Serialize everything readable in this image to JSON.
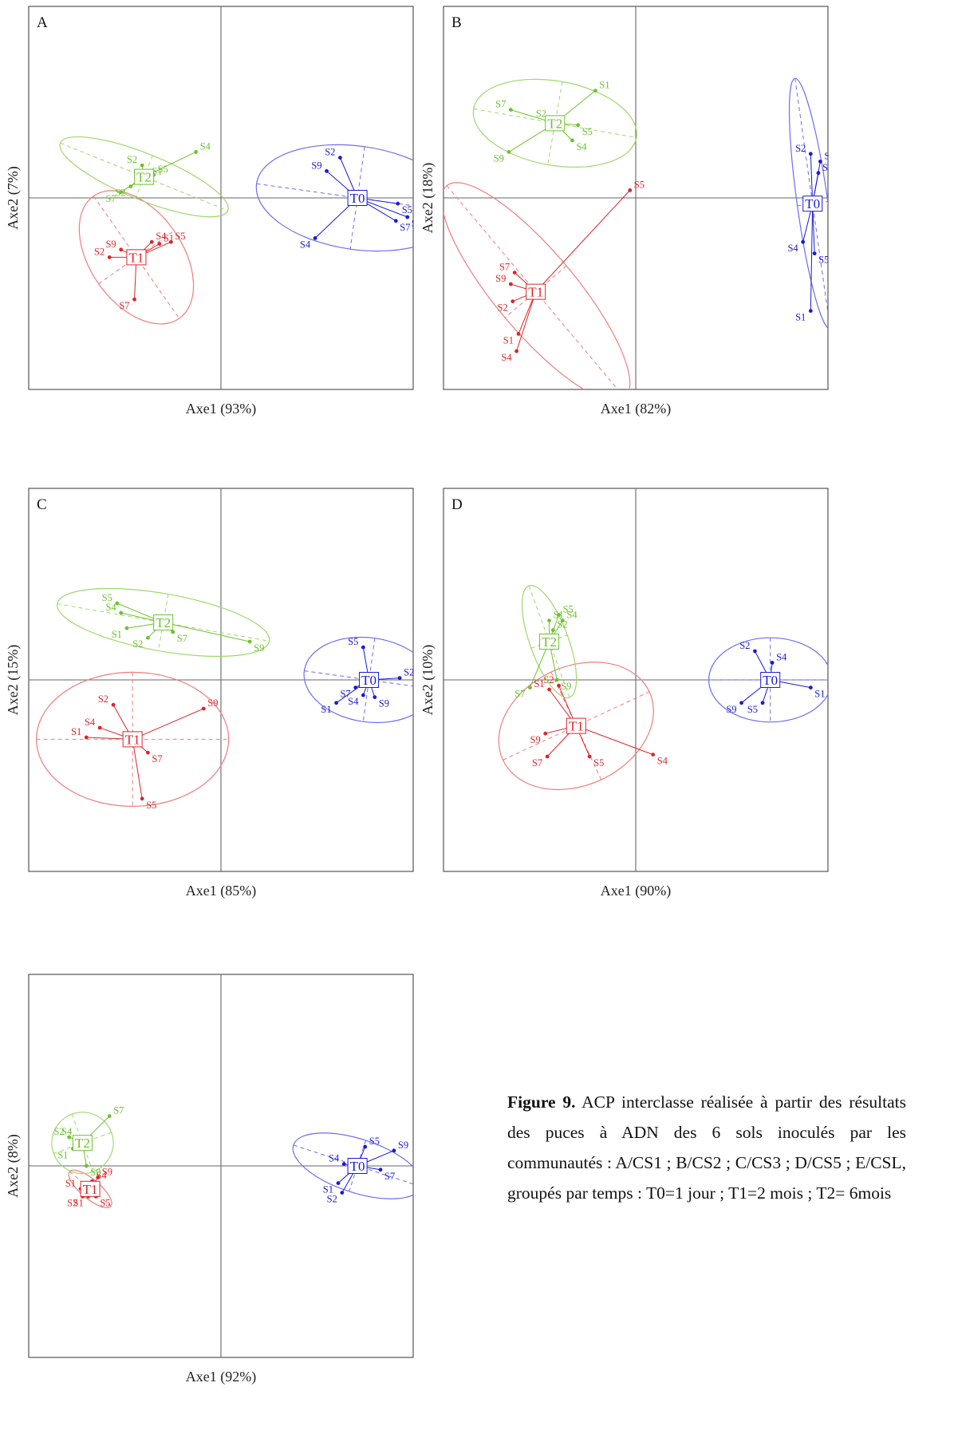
{
  "caption": {
    "figure_label": "Figure 9.",
    "text": "ACP interclasse réalisée à partir des résultats des puces à ADN des 6 sols inoculés par les communautés : A/CS1 ; B/CS2 ; C/CS3 ; D/CS5 ; E/CSL, groupés par temps : T0=1 jour ; T1=2 mois ; T2= 6mois"
  },
  "colors": {
    "T0": "#1a1ad6",
    "T1": "#d9262b",
    "T2": "#6cc22e",
    "ellipse_T0": "#6d6df0",
    "ellipse_T1": "#f07c7c",
    "ellipse_T2": "#9ed86a"
  },
  "chart_data": [
    {
      "type": "scatter",
      "panel": "A",
      "xlabel": "Axe1 (93%)",
      "ylabel": "Axe2 (7%)",
      "xlim": [
        -1,
        1
      ],
      "ylim": [
        -1,
        1
      ],
      "groups": [
        {
          "name": "T0",
          "center": [
            0.71,
            0.0
          ],
          "ellipse": {
            "rx": 0.53,
            "ry": 0.27,
            "angle": -8
          },
          "points": [
            {
              "label": "S2",
              "x": 0.62,
              "y": 0.21
            },
            {
              "label": "S9",
              "x": 0.55,
              "y": 0.14
            },
            {
              "label": "S4",
              "x": 0.49,
              "y": -0.21
            },
            {
              "label": "S5",
              "x": 0.92,
              "y": -0.03
            },
            {
              "label": "S7",
              "x": 0.91,
              "y": -0.12
            },
            {
              "label": "S1",
              "x": 0.97,
              "y": -0.1
            }
          ]
        },
        {
          "name": "T1",
          "center": [
            -0.44,
            -0.31
          ],
          "ellipse": {
            "rx": 0.24,
            "ry": 0.39,
            "angle": 35
          },
          "points": [
            {
              "label": "S4",
              "x": -0.36,
              "y": -0.23
            },
            {
              "label": "S1",
              "x": -0.32,
              "y": -0.24
            },
            {
              "label": "S5",
              "x": -0.26,
              "y": -0.23
            },
            {
              "label": "S9",
              "x": -0.52,
              "y": -0.27
            },
            {
              "label": "S2",
              "x": -0.58,
              "y": -0.31
            },
            {
              "label": "S7",
              "x": -0.45,
              "y": -0.53
            }
          ]
        },
        {
          "name": "T2",
          "center": [
            -0.4,
            0.11
          ],
          "ellipse": {
            "rx": 0.47,
            "ry": 0.12,
            "angle": -22
          },
          "points": [
            {
              "label": "S4",
              "x": -0.13,
              "y": 0.24
            },
            {
              "label": "S2",
              "x": -0.41,
              "y": 0.17
            },
            {
              "label": "S5",
              "x": -0.35,
              "y": 0.12
            },
            {
              "label": "S1",
              "x": -0.38,
              "y": 0.11
            },
            {
              "label": "S2",
              "x": -0.47,
              "y": 0.06
            },
            {
              "label": "S7",
              "x": -0.52,
              "y": 0.03
            }
          ]
        }
      ]
    },
    {
      "type": "scatter",
      "panel": "B",
      "xlabel": "Axe1 (82%)",
      "ylabel": "Axe2 (18%)",
      "xlim": [
        -1,
        1
      ],
      "ylim": [
        -1,
        1
      ],
      "groups": [
        {
          "name": "T0",
          "center": [
            0.92,
            -0.03
          ],
          "ellipse": {
            "rx": 0.08,
            "ry": 0.66,
            "angle": 8
          },
          "points": [
            {
              "label": "S2",
              "x": 0.91,
              "y": 0.23
            },
            {
              "label": "S9",
              "x": 0.96,
              "y": 0.19
            },
            {
              "label": "S7",
              "x": 0.95,
              "y": 0.13
            },
            {
              "label": "S4",
              "x": 0.87,
              "y": -0.23
            },
            {
              "label": "S5",
              "x": 0.93,
              "y": -0.29
            },
            {
              "label": "S1",
              "x": 0.91,
              "y": -0.59
            }
          ]
        },
        {
          "name": "T1",
          "center": [
            -0.52,
            -0.49
          ],
          "ellipse": {
            "rx": 0.72,
            "ry": 0.21,
            "angle": -50
          },
          "points": [
            {
              "label": "S7",
              "x": -0.63,
              "y": -0.39
            },
            {
              "label": "S9",
              "x": -0.65,
              "y": -0.45
            },
            {
              "label": "S2",
              "x": -0.64,
              "y": -0.54
            },
            {
              "label": "S1",
              "x": -0.61,
              "y": -0.71
            },
            {
              "label": "S4",
              "x": -0.62,
              "y": -0.8
            },
            {
              "label": "S5",
              "x": -0.03,
              "y": 0.04
            }
          ]
        },
        {
          "name": "T2",
          "center": [
            -0.42,
            0.39
          ],
          "ellipse": {
            "rx": 0.43,
            "ry": 0.22,
            "angle": -10
          },
          "points": [
            {
              "label": "S1",
              "x": -0.21,
              "y": 0.56
            },
            {
              "label": "S7",
              "x": -0.65,
              "y": 0.46
            },
            {
              "label": "S2",
              "x": -0.44,
              "y": 0.41
            },
            {
              "label": "S5",
              "x": -0.3,
              "y": 0.38
            },
            {
              "label": "S4",
              "x": -0.33,
              "y": 0.3
            },
            {
              "label": "S9",
              "x": -0.66,
              "y": 0.24
            }
          ]
        }
      ]
    },
    {
      "type": "scatter",
      "panel": "C",
      "xlabel": "Axe1 (85%)",
      "ylabel": "Axe2 (15%)",
      "xlim": [
        -1,
        1
      ],
      "ylim": [
        -1,
        1
      ],
      "groups": [
        {
          "name": "T0",
          "center": [
            0.77,
            0.0
          ],
          "ellipse": {
            "rx": 0.34,
            "ry": 0.22,
            "angle": -8
          },
          "points": [
            {
              "label": "S5",
              "x": 0.74,
              "y": 0.17
            },
            {
              "label": "S2",
              "x": 0.93,
              "y": 0.01
            },
            {
              "label": "S7",
              "x": 0.7,
              "y": -0.04
            },
            {
              "label": "S4",
              "x": 0.74,
              "y": -0.08
            },
            {
              "label": "S9",
              "x": 0.8,
              "y": -0.09
            },
            {
              "label": "S1",
              "x": 0.6,
              "y": -0.12
            }
          ]
        },
        {
          "name": "T1",
          "center": [
            -0.46,
            -0.31
          ],
          "ellipse": {
            "rx": 0.5,
            "ry": 0.35,
            "angle": 0
          },
          "points": [
            {
              "label": "S2",
              "x": -0.56,
              "y": -0.13
            },
            {
              "label": "S4",
              "x": -0.63,
              "y": -0.25
            },
            {
              "label": "S9",
              "x": -0.09,
              "y": -0.15
            },
            {
              "label": "S1",
              "x": -0.7,
              "y": -0.3
            },
            {
              "label": "S7",
              "x": -0.38,
              "y": -0.38
            },
            {
              "label": "S5",
              "x": -0.41,
              "y": -0.62
            }
          ]
        },
        {
          "name": "T2",
          "center": [
            -0.3,
            0.3
          ],
          "ellipse": {
            "rx": 0.56,
            "ry": 0.15,
            "angle": -10
          },
          "points": [
            {
              "label": "S5",
              "x": -0.54,
              "y": 0.4
            },
            {
              "label": "S4",
              "x": -0.52,
              "y": 0.35
            },
            {
              "label": "S1",
              "x": -0.49,
              "y": 0.27
            },
            {
              "label": "S2",
              "x": -0.38,
              "y": 0.22
            },
            {
              "label": "S7",
              "x": -0.25,
              "y": 0.25
            },
            {
              "label": "S9",
              "x": 0.15,
              "y": 0.2
            }
          ]
        }
      ]
    },
    {
      "type": "scatter",
      "panel": "D",
      "xlabel": "Axe1 (90%)",
      "ylabel": "Axe2 (10%)",
      "xlim": [
        -1,
        1
      ],
      "ylim": [
        -1,
        1
      ],
      "groups": [
        {
          "name": "T0",
          "center": [
            0.7,
            0.0
          ],
          "ellipse": {
            "rx": 0.32,
            "ry": 0.22,
            "angle": 0
          },
          "points": [
            {
              "label": "S2",
              "x": 0.62,
              "y": 0.15
            },
            {
              "label": "S4",
              "x": 0.71,
              "y": 0.09
            },
            {
              "label": "S1",
              "x": 0.91,
              "y": -0.04
            },
            {
              "label": "S9",
              "x": 0.55,
              "y": -0.12
            },
            {
              "label": "S5",
              "x": 0.66,
              "y": -0.12
            }
          ]
        },
        {
          "name": "T1",
          "center": [
            -0.31,
            -0.24
          ],
          "ellipse": {
            "rx": 0.42,
            "ry": 0.31,
            "angle": 25
          },
          "points": [
            {
              "label": "S2",
              "x": -0.4,
              "y": -0.03
            },
            {
              "label": "S1",
              "x": -0.45,
              "y": -0.05
            },
            {
              "label": "S9",
              "x": -0.47,
              "y": -0.28
            },
            {
              "label": "S7",
              "x": -0.46,
              "y": -0.4
            },
            {
              "label": "S5",
              "x": -0.24,
              "y": -0.4
            },
            {
              "label": "S4",
              "x": 0.09,
              "y": -0.39
            }
          ]
        },
        {
          "name": "T2",
          "center": [
            -0.45,
            0.2
          ],
          "ellipse": {
            "rx": 0.1,
            "ry": 0.31,
            "angle": 20
          },
          "points": [
            {
              "label": "S5",
              "x": -0.4,
              "y": 0.34
            },
            {
              "label": "S1",
              "x": -0.45,
              "y": 0.31
            },
            {
              "label": "S4",
              "x": -0.38,
              "y": 0.31
            },
            {
              "label": "S2",
              "x": -0.43,
              "y": 0.26
            },
            {
              "label": "S9",
              "x": -0.41,
              "y": 0.0
            },
            {
              "label": "S7",
              "x": -0.55,
              "y": -0.04
            }
          ]
        }
      ]
    },
    {
      "type": "scatter",
      "panel": "",
      "xlabel": "Axe1 (92%)",
      "ylabel": "Axe2  (8%)",
      "xlim": [
        -1,
        1
      ],
      "ylim": [
        -1,
        1
      ],
      "groups": [
        {
          "name": "T0",
          "center": [
            0.71,
            0.0
          ],
          "ellipse": {
            "rx": 0.35,
            "ry": 0.14,
            "angle": -18
          },
          "points": [
            {
              "label": "S5",
              "x": 0.75,
              "y": 0.1
            },
            {
              "label": "S9",
              "x": 0.9,
              "y": 0.08
            },
            {
              "label": "S4",
              "x": 0.64,
              "y": 0.01
            },
            {
              "label": "S7",
              "x": 0.83,
              "y": -0.02
            },
            {
              "label": "S1",
              "x": 0.61,
              "y": -0.09
            },
            {
              "label": "S2",
              "x": 0.63,
              "y": -0.14
            }
          ]
        },
        {
          "name": "T1",
          "center": [
            -0.68,
            -0.12
          ],
          "ellipse": {
            "rx": 0.14,
            "ry": 0.05,
            "angle": -40
          },
          "points": [
            {
              "label": "S9",
              "x": -0.64,
              "y": -0.06
            },
            {
              "label": "S4",
              "x": -0.67,
              "y": -0.08
            },
            {
              "label": "S1",
              "x": -0.73,
              "y": -0.12
            },
            {
              "label": "S2",
              "x": -0.72,
              "y": -0.16
            },
            {
              "label": "S1",
              "x": -0.69,
              "y": -0.16
            },
            {
              "label": "S5",
              "x": -0.65,
              "y": -0.16
            }
          ]
        },
        {
          "name": "T2",
          "center": [
            -0.72,
            0.12
          ],
          "ellipse": {
            "rx": 0.16,
            "ry": 0.16,
            "angle": 20
          },
          "points": [
            {
              "label": "S7",
              "x": -0.58,
              "y": 0.26
            },
            {
              "label": "S2",
              "x": -0.79,
              "y": 0.15
            },
            {
              "label": "S4",
              "x": -0.75,
              "y": 0.15
            },
            {
              "label": "S1",
              "x": -0.77,
              "y": 0.09
            },
            {
              "label": "S9",
              "x": -0.7,
              "y": 0.0
            }
          ]
        }
      ]
    }
  ]
}
